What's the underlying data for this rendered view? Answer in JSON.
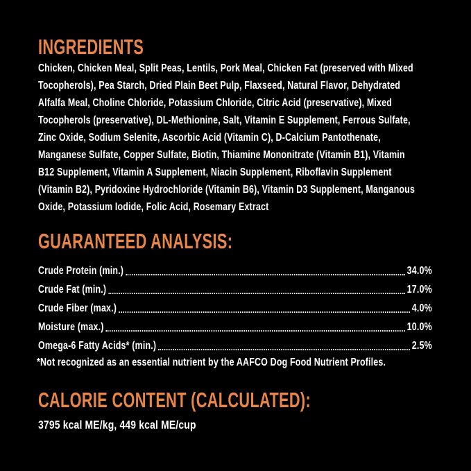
{
  "colors": {
    "background": "#000000",
    "accent_orange": "#e8864a",
    "text_white": "#ffffff"
  },
  "ingredients": {
    "heading": "INGREDIENTS",
    "lines": [
      "Chicken, Chicken Meal, Split Peas, Lentils, Pork Meal, Chicken Fat (preserved with Mixed",
      "Tocopherols), Pea Starch, Dried Plain Beet Pulp, Flaxseed, Natural Flavor, Dehydrated",
      "Alfalfa Meal, Choline Chloride, Potassium Chloride, Citric Acid (preservative), Mixed",
      "Tocopherols (preservative), DL-Methionine, Salt, Vitamin E Supplement, Ferrous Sulfate,",
      "Zinc Oxide, Sodium Selenite, Ascorbic Acid (Vitamin C), D-Calcium Pantothenate,",
      "Manganese Sulfate, Copper Sulfate, Biotin, Thiamine Mononitrate (Vitamin B1), Vitamin",
      "B12 Supplement, Vitamin A Supplement, Niacin Supplement, Riboflavin Supplement",
      "(Vitamin B2), Pyridoxine Hydrochloride (Vitamin B6), Vitamin D3 Supplement, Manganous",
      "Oxide, Potassium Iodide, Folic Acid, Rosemary Extract"
    ]
  },
  "guaranteed_analysis": {
    "heading": "GUARANTEED ANALYSIS:",
    "rows": [
      {
        "label": "Crude Protein (min.)",
        "value": "34.0%"
      },
      {
        "label": "Crude Fat (min.)",
        "value": "17.0%"
      },
      {
        "label": "Crude Fiber (max.)",
        "value": "4.0%"
      },
      {
        "label": "Moisture (max.)",
        "value": "10.0%"
      },
      {
        "label": "Omega-6 Fatty Acids* (min.)",
        "value": "2.5%"
      }
    ],
    "footnote": "*Not recognized as an essential nutrient by the AAFCO Dog Food Nutrient Profiles."
  },
  "calorie_content": {
    "heading": "CALORIE CONTENT (CALCULATED):",
    "value": "3795 kcal ME/kg, 449 kcal ME/cup"
  }
}
